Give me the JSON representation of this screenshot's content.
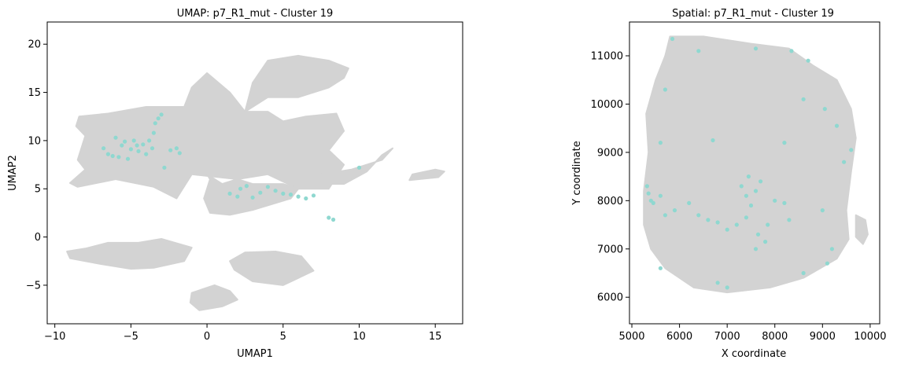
{
  "chart_data": [
    {
      "type": "scatter",
      "title": "UMAP: p7_R1_mut - Cluster 19",
      "xlabel": "UMAP1",
      "ylabel": "UMAP2",
      "xlim": [
        -10.5,
        16.8
      ],
      "ylim": [
        -9,
        22.3
      ],
      "xticks": [
        -10,
        -5,
        0,
        5,
        10,
        15
      ],
      "yticks": [
        -5,
        0,
        5,
        10,
        15,
        20
      ],
      "background_color": "#d3d3d3",
      "highlight_color": "#8fd8d0",
      "background_regions": [
        {
          "poly": [
            [
              -6.5,
              12.8
            ],
            [
              -4,
              13.5
            ],
            [
              -1.5,
              13.5
            ],
            [
              -1,
              15.5
            ],
            [
              0,
              17
            ],
            [
              1.5,
              15
            ],
            [
              2.5,
              13
            ],
            [
              4,
              13
            ],
            [
              5,
              12
            ],
            [
              6.5,
              12.5
            ],
            [
              8.5,
              12.8
            ],
            [
              9,
              11
            ],
            [
              8,
              9
            ],
            [
              9,
              7.5
            ],
            [
              8,
              5
            ],
            [
              6,
              5
            ],
            [
              4,
              6.5
            ],
            [
              2,
              6
            ],
            [
              -1,
              6.5
            ],
            [
              -2,
              4
            ],
            [
              -3.5,
              5.2
            ],
            [
              -6,
              6
            ],
            [
              -8.5,
              5.2
            ],
            [
              -9,
              5.6
            ],
            [
              -8,
              7
            ],
            [
              -8.5,
              8
            ],
            [
              -8,
              10.5
            ],
            [
              -8.6,
              11.5
            ],
            [
              -8.4,
              12.5
            ]
          ]
        },
        {
          "poly": [
            [
              2.5,
              13
            ],
            [
              3,
              16
            ],
            [
              4,
              18.3
            ],
            [
              6,
              18.8
            ],
            [
              8,
              18.3
            ],
            [
              9.3,
              17.5
            ],
            [
              9,
              16.5
            ],
            [
              8,
              15.5
            ],
            [
              6,
              14.5
            ],
            [
              4,
              14.5
            ]
          ]
        },
        {
          "poly": [
            [
              0,
              6.5
            ],
            [
              1,
              5.5
            ],
            [
              2,
              6
            ],
            [
              3,
              5.5
            ],
            [
              5,
              5.5
            ],
            [
              6,
              5
            ],
            [
              5.5,
              4
            ],
            [
              3,
              2.8
            ],
            [
              1.5,
              2.3
            ],
            [
              0.2,
              2.5
            ],
            [
              -0.2,
              4
            ],
            [
              0.2,
              6
            ]
          ]
        },
        {
          "poly": [
            [
              7.5,
              6.5
            ],
            [
              9.5,
              7
            ],
            [
              10.5,
              7.5
            ],
            [
              11.5,
              8
            ],
            [
              12.2,
              9.2
            ],
            [
              11.5,
              8.5
            ],
            [
              10.5,
              6.8
            ],
            [
              9,
              5.5
            ],
            [
              8,
              5.5
            ]
          ]
        },
        {
          "poly": [
            [
              13.5,
              6.5
            ],
            [
              15,
              7
            ],
            [
              15.6,
              6.8
            ],
            [
              15.2,
              6.2
            ],
            [
              13.3,
              5.9
            ]
          ]
        },
        {
          "poly": [
            [
              -9.2,
              -1.5
            ],
            [
              -8,
              -1.2
            ],
            [
              -6.5,
              -0.6
            ],
            [
              -4.5,
              -0.6
            ],
            [
              -3,
              -0.2
            ],
            [
              -1,
              -1.1
            ],
            [
              -1.5,
              -2.5
            ],
            [
              -3.5,
              -3.2
            ],
            [
              -5,
              -3.3
            ],
            [
              -7,
              -2.8
            ],
            [
              -9,
              -2.2
            ]
          ]
        },
        {
          "poly": [
            [
              1.5,
              -2.5
            ],
            [
              2.5,
              -1.6
            ],
            [
              4.5,
              -1.5
            ],
            [
              6.2,
              -2
            ],
            [
              7,
              -3.5
            ],
            [
              5,
              -5
            ],
            [
              3,
              -4.6
            ],
            [
              1.8,
              -3.4
            ]
          ]
        },
        {
          "poly": [
            [
              -1,
              -5.8
            ],
            [
              0.5,
              -5
            ],
            [
              1.5,
              -5.6
            ],
            [
              2,
              -6.5
            ],
            [
              1,
              -7.2
            ],
            [
              -0.5,
              -7.6
            ],
            [
              -1.1,
              -6.8
            ]
          ]
        }
      ],
      "highlight_points": [
        [
          -6.8,
          9.2
        ],
        [
          -6.5,
          8.6
        ],
        [
          -6.2,
          8.4
        ],
        [
          -6,
          10.3
        ],
        [
          -5.8,
          8.3
        ],
        [
          -5.6,
          9.5
        ],
        [
          -5.4,
          9.9
        ],
        [
          -5.2,
          8.1
        ],
        [
          -5,
          9.1
        ],
        [
          -4.8,
          10
        ],
        [
          -4.6,
          9.5
        ],
        [
          -4.5,
          8.9
        ],
        [
          -4.2,
          9.6
        ],
        [
          -4,
          8.6
        ],
        [
          -3.8,
          10
        ],
        [
          -3.6,
          9.2
        ],
        [
          -3.5,
          10.8
        ],
        [
          -3.4,
          11.8
        ],
        [
          -3.2,
          12.3
        ],
        [
          -3,
          12.7
        ],
        [
          -2.8,
          7.2
        ],
        [
          -2.4,
          9
        ],
        [
          -2,
          9.2
        ],
        [
          -1.8,
          8.7
        ],
        [
          1.5,
          4.5
        ],
        [
          2,
          4.2
        ],
        [
          2.2,
          5
        ],
        [
          2.6,
          5.3
        ],
        [
          3,
          4.1
        ],
        [
          3.5,
          4.6
        ],
        [
          4,
          5.2
        ],
        [
          4.5,
          4.8
        ],
        [
          5,
          4.5
        ],
        [
          5.5,
          4.4
        ],
        [
          6,
          4.2
        ],
        [
          6.5,
          4
        ],
        [
          7,
          4.3
        ],
        [
          8,
          2
        ],
        [
          8.3,
          1.8
        ],
        [
          10,
          7.2
        ]
      ]
    },
    {
      "type": "scatter",
      "title": "Spatial: p7_R1_mut - Cluster 19",
      "xlabel": "X coordinate",
      "ylabel": "Y coordinate",
      "xlim": [
        4950,
        10200
      ],
      "ylim": [
        5450,
        11700
      ],
      "xticks": [
        5000,
        6000,
        7000,
        8000,
        9000,
        10000
      ],
      "yticks": [
        6000,
        7000,
        8000,
        9000,
        10000,
        11000
      ],
      "background_color": "#d3d3d3",
      "highlight_color": "#8fd8d0",
      "background_regions": [
        {
          "poly": [
            [
              5800,
              11400
            ],
            [
              6500,
              11400
            ],
            [
              7500,
              11250
            ],
            [
              8300,
              11150
            ],
            [
              8800,
              10800
            ],
            [
              9300,
              10500
            ],
            [
              9600,
              9900
            ],
            [
              9700,
              9300
            ],
            [
              9600,
              8600
            ],
            [
              9500,
              7800
            ],
            [
              9550,
              7200
            ],
            [
              9300,
              6800
            ],
            [
              8600,
              6400
            ],
            [
              7900,
              6200
            ],
            [
              7000,
              6100
            ],
            [
              6300,
              6200
            ],
            [
              5700,
              6600
            ],
            [
              5400,
              7000
            ],
            [
              5250,
              7500
            ],
            [
              5250,
              8200
            ],
            [
              5350,
              9000
            ],
            [
              5300,
              9800
            ],
            [
              5500,
              10500
            ],
            [
              5700,
              11000
            ]
          ]
        },
        {
          "poly": [
            [
              9700,
              7700
            ],
            [
              9900,
              7600
            ],
            [
              9950,
              7300
            ],
            [
              9850,
              7100
            ],
            [
              9700,
              7250
            ]
          ]
        }
      ],
      "highlight_points": [
        [
          5850,
          11350
        ],
        [
          6400,
          11100
        ],
        [
          7600,
          11150
        ],
        [
          8350,
          11100
        ],
        [
          8700,
          10900
        ],
        [
          5700,
          10300
        ],
        [
          8600,
          10100
        ],
        [
          9050,
          9900
        ],
        [
          9300,
          9550
        ],
        [
          9600,
          9050
        ],
        [
          5600,
          9200
        ],
        [
          6700,
          9250
        ],
        [
          8200,
          9200
        ],
        [
          9450,
          8800
        ],
        [
          5320,
          8300
        ],
        [
          5350,
          8150
        ],
        [
          5400,
          8000
        ],
        [
          5600,
          8100
        ],
        [
          5450,
          7950
        ],
        [
          5700,
          7700
        ],
        [
          5900,
          7800
        ],
        [
          6200,
          7950
        ],
        [
          6400,
          7700
        ],
        [
          6600,
          7600
        ],
        [
          6800,
          7550
        ],
        [
          7000,
          7400
        ],
        [
          7200,
          7500
        ],
        [
          7400,
          7650
        ],
        [
          7300,
          8300
        ],
        [
          7400,
          8100
        ],
        [
          7500,
          7900
        ],
        [
          7600,
          8200
        ],
        [
          7450,
          8500
        ],
        [
          7650,
          7300
        ],
        [
          7800,
          7150
        ],
        [
          7850,
          7500
        ],
        [
          7600,
          7000
        ],
        [
          7700,
          8400
        ],
        [
          8000,
          8000
        ],
        [
          8200,
          7950
        ],
        [
          8300,
          7600
        ],
        [
          9000,
          7800
        ],
        [
          9200,
          7000
        ],
        [
          9100,
          6700
        ],
        [
          5600,
          6600
        ],
        [
          6800,
          6300
        ],
        [
          7000,
          6200
        ],
        [
          8600,
          6500
        ]
      ]
    }
  ]
}
